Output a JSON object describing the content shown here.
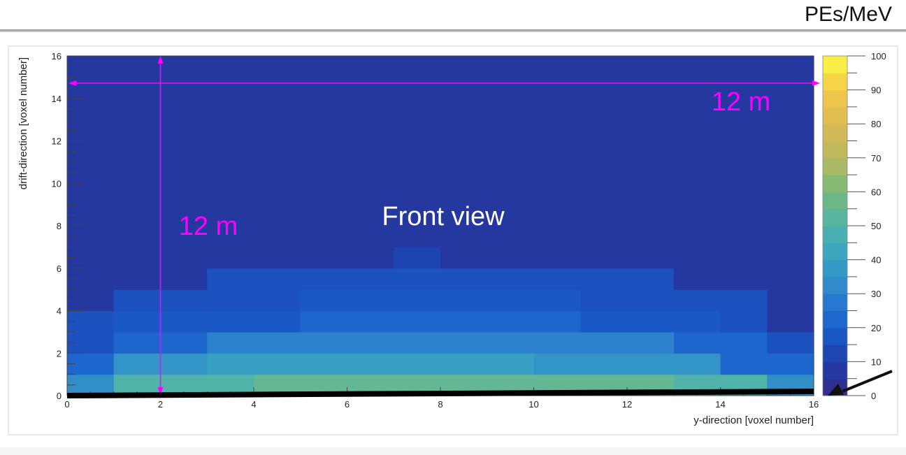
{
  "header": {
    "units": "PEs/MeV"
  },
  "chart_data": {
    "type": "heatmap",
    "title": "",
    "xlabel": "y-direction [voxel number]",
    "ylabel": "drift-direction [voxel number]",
    "xlim": [
      0,
      16
    ],
    "ylim": [
      0,
      16
    ],
    "x_ticks": [
      0,
      2,
      4,
      6,
      8,
      10,
      12,
      14,
      16
    ],
    "y_ticks": [
      0,
      2,
      4,
      6,
      8,
      10,
      12,
      14,
      16
    ],
    "colorbar": {
      "range": [
        0,
        100
      ],
      "ticks": [
        0,
        10,
        20,
        30,
        40,
        50,
        60,
        70,
        80,
        90,
        100
      ]
    },
    "z_rows_bottom_to_top": [
      [
        34,
        50,
        50,
        50,
        55,
        55,
        55,
        55,
        55,
        55,
        55,
        55,
        55,
        50,
        50,
        34
      ],
      [
        22,
        36,
        36,
        40,
        40,
        40,
        40,
        40,
        40,
        40,
        36,
        36,
        36,
        36,
        22,
        22
      ],
      [
        16,
        22,
        22,
        30,
        30,
        30,
        30,
        30,
        30,
        30,
        30,
        30,
        30,
        22,
        22,
        16
      ],
      [
        16,
        18,
        18,
        18,
        18,
        22,
        22,
        22,
        22,
        22,
        22,
        18,
        18,
        18,
        16,
        7
      ],
      [
        7,
        16,
        16,
        16,
        16,
        18,
        18,
        18,
        18,
        18,
        18,
        16,
        16,
        16,
        16,
        7
      ],
      [
        7,
        7,
        7,
        16,
        16,
        16,
        16,
        16,
        16,
        16,
        16,
        16,
        16,
        7,
        7,
        7
      ],
      [
        7,
        7,
        7,
        7,
        7,
        7,
        7,
        12,
        7,
        7,
        7,
        7,
        7,
        7,
        7,
        7
      ],
      [
        7,
        7,
        7,
        7,
        7,
        7,
        7,
        7,
        7,
        7,
        7,
        7,
        7,
        7,
        7,
        7
      ],
      [
        7,
        7,
        7,
        7,
        7,
        7,
        7,
        7,
        7,
        7,
        7,
        7,
        7,
        7,
        7,
        7
      ],
      [
        7,
        7,
        7,
        7,
        7,
        7,
        7,
        7,
        7,
        7,
        7,
        7,
        7,
        7,
        7,
        7
      ],
      [
        7,
        7,
        7,
        7,
        7,
        7,
        7,
        7,
        7,
        7,
        7,
        7,
        7,
        7,
        7,
        7
      ],
      [
        7,
        7,
        7,
        7,
        7,
        7,
        7,
        7,
        7,
        7,
        7,
        7,
        7,
        7,
        7,
        7
      ],
      [
        7,
        7,
        7,
        7,
        7,
        7,
        7,
        7,
        7,
        7,
        7,
        7,
        7,
        7,
        7,
        7
      ],
      [
        7,
        7,
        7,
        7,
        7,
        7,
        7,
        7,
        7,
        7,
        7,
        7,
        7,
        7,
        7,
        7
      ],
      [
        7,
        7,
        7,
        7,
        7,
        7,
        7,
        7,
        7,
        7,
        7,
        7,
        7,
        7,
        7,
        7
      ],
      [
        7,
        7,
        7,
        7,
        7,
        7,
        7,
        7,
        7,
        7,
        7,
        7,
        7,
        7,
        7,
        7
      ]
    ],
    "annotations": {
      "center": "Front view",
      "vertical": "12 m",
      "horizontal": "12 m"
    },
    "annotation_color": "#ff00ff"
  }
}
